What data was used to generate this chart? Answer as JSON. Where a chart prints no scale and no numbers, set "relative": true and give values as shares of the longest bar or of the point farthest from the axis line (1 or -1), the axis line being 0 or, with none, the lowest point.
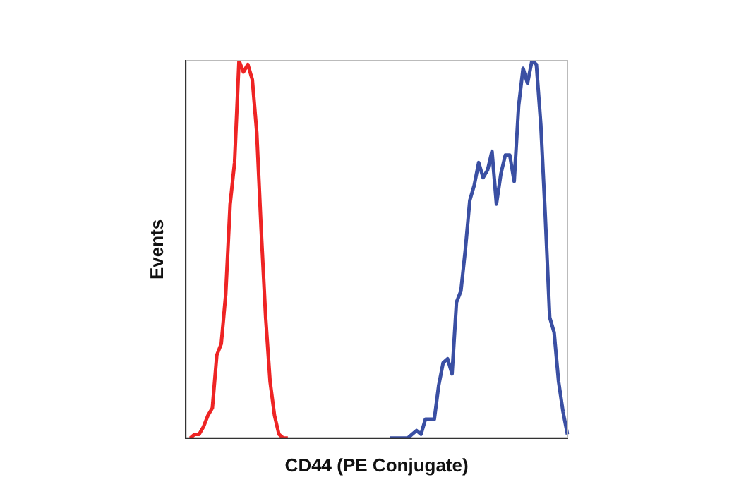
{
  "chart_data": {
    "type": "line",
    "xlabel": "CD44 (PE Conjugate)",
    "ylabel": "Events",
    "relative": true,
    "tick_labels": false,
    "marker": "none",
    "categories": [
      null,
      null,
      null,
      null,
      null,
      null,
      null,
      null,
      null,
      null,
      null,
      null,
      null,
      null,
      null,
      null,
      null,
      null,
      null,
      null,
      null,
      null,
      null,
      null,
      null,
      null,
      null,
      null,
      null,
      null,
      null,
      null,
      null,
      null,
      null,
      null,
      null,
      null,
      null,
      null,
      null,
      null,
      null,
      null,
      null,
      null,
      null,
      null,
      null,
      null,
      null,
      null,
      null,
      null,
      null,
      null,
      null,
      null,
      null,
      null,
      null,
      null,
      null,
      null,
      null,
      null,
      null,
      null,
      null,
      null,
      null,
      null,
      null,
      null,
      null,
      null,
      null,
      null,
      null,
      null,
      null,
      null,
      null,
      null,
      null,
      null,
      null
    ],
    "series": [
      {
        "color": "#ee2424",
        "values": [
          null,
          0.0,
          0.01,
          0.01,
          0.03,
          0.06,
          0.08,
          0.22,
          0.25,
          0.38,
          0.62,
          0.73,
          1.0,
          0.97,
          0.99,
          0.95,
          0.81,
          0.55,
          0.32,
          0.15,
          0.06,
          0.01,
          0.0,
          0.0,
          null,
          null,
          null,
          null,
          null,
          null,
          null,
          null,
          null,
          null,
          null,
          null,
          null,
          null,
          null,
          null,
          null,
          null,
          null,
          null,
          null,
          null,
          null,
          null,
          null,
          null,
          null,
          null,
          null,
          null,
          null,
          null,
          null,
          null,
          null,
          null,
          null,
          null,
          null,
          null,
          null,
          null,
          null,
          null,
          null,
          null,
          null,
          null,
          null,
          null,
          null,
          null,
          null,
          null,
          null,
          null,
          null,
          null,
          null,
          null,
          null,
          null,
          null
        ]
      },
      {
        "color": "#3a4fa3",
        "values": [
          null,
          null,
          null,
          null,
          null,
          null,
          null,
          null,
          null,
          null,
          null,
          null,
          null,
          null,
          null,
          null,
          null,
          null,
          null,
          null,
          null,
          null,
          null,
          null,
          null,
          null,
          null,
          null,
          null,
          null,
          null,
          null,
          null,
          null,
          null,
          null,
          null,
          null,
          null,
          null,
          null,
          null,
          null,
          null,
          null,
          null,
          0.0,
          0.0,
          0.0,
          0.0,
          0.0,
          0.01,
          0.02,
          0.01,
          0.05,
          0.05,
          0.05,
          0.14,
          0.2,
          0.21,
          0.17,
          0.36,
          0.39,
          0.5,
          0.63,
          0.67,
          0.73,
          0.69,
          0.71,
          0.76,
          0.62,
          0.7,
          0.75,
          0.75,
          0.68,
          0.88,
          0.98,
          0.94,
          1.0,
          0.99,
          0.83,
          0.59,
          0.32,
          0.28,
          0.15,
          0.07,
          0.01
        ]
      }
    ]
  }
}
